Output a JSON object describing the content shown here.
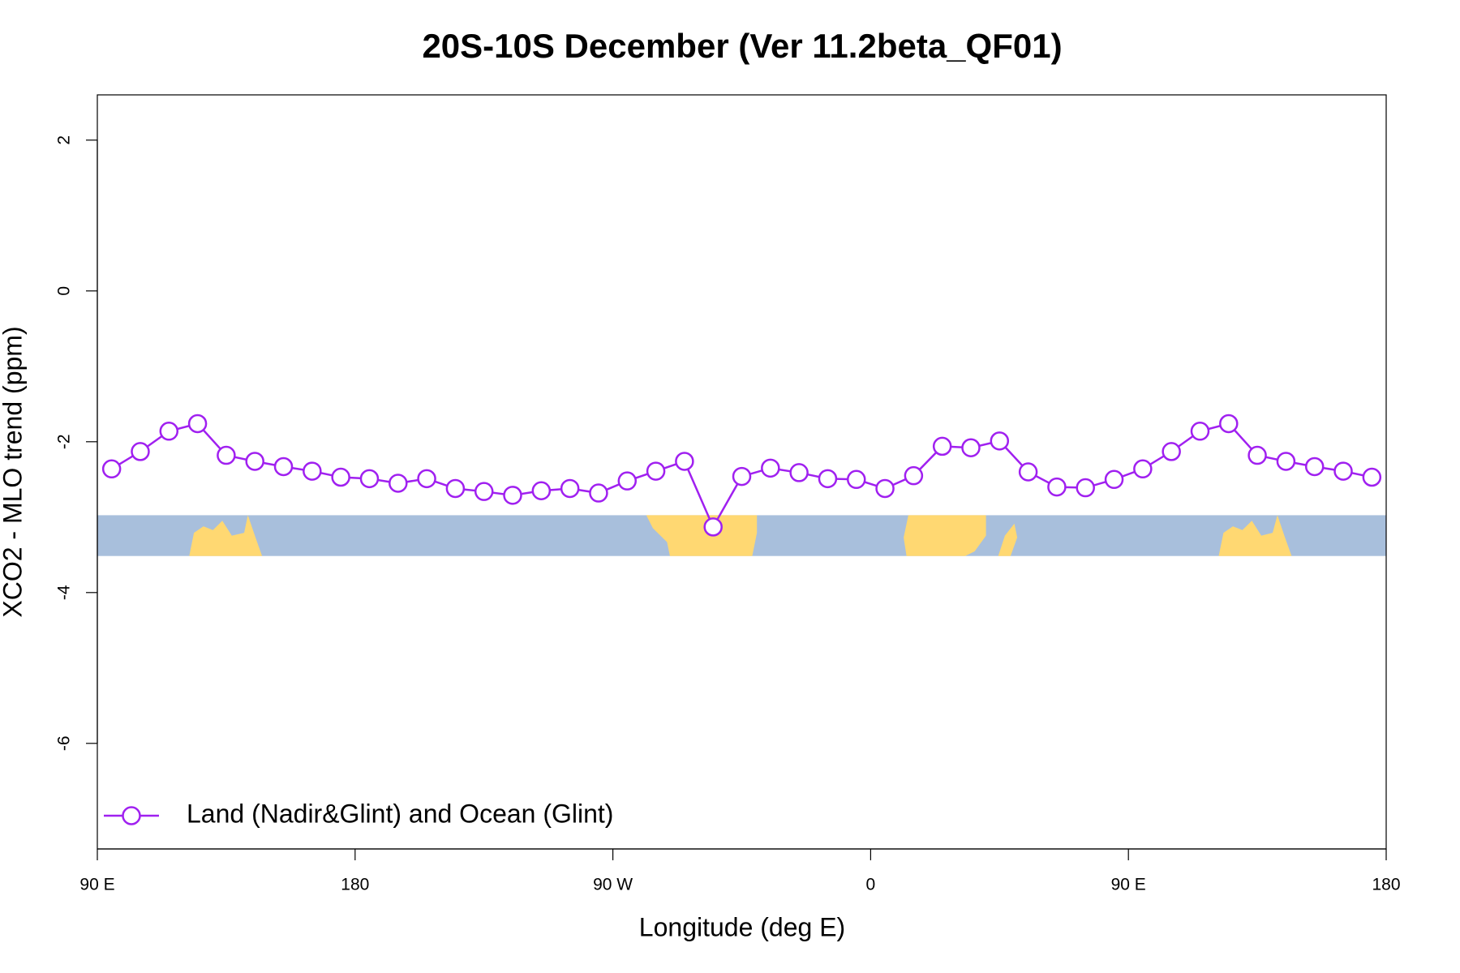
{
  "chart_data": {
    "type": "line",
    "title": "20S-10S December (Ver 11.2beta_QF01)",
    "xlabel": "Longitude (deg E)",
    "ylabel": "XCO2 - MLO trend (ppm)",
    "x": [
      95,
      105,
      115,
      125,
      135,
      145,
      155,
      165,
      175,
      185,
      195,
      205,
      215,
      225,
      235,
      245,
      255,
      265,
      275,
      285,
      295,
      305,
      315,
      325,
      335,
      345,
      355,
      365,
      375,
      385,
      395,
      405,
      415,
      425,
      435,
      445,
      455,
      465,
      475,
      485,
      495,
      505,
      515,
      525,
      535
    ],
    "series": [
      {
        "name": "Land (Nadir&Glint) and Ocean (Glint)",
        "color": "#a020f0",
        "values": [
          -2.36,
          -2.13,
          -1.86,
          -1.76,
          -2.18,
          -2.26,
          -2.33,
          -2.39,
          -2.47,
          -2.49,
          -2.55,
          -2.49,
          -2.62,
          -2.66,
          -2.71,
          -2.65,
          -2.62,
          -2.68,
          -2.52,
          -2.39,
          -2.26,
          -3.13,
          -2.46,
          -2.35,
          -2.41,
          -2.49,
          -2.5,
          -2.62,
          -2.45,
          -2.06,
          -2.08,
          -1.99,
          -2.4,
          -2.6,
          -2.61,
          -2.5,
          -2.36,
          -2.13,
          -1.86,
          -1.76,
          -2.18,
          -2.26,
          -2.33,
          -2.39,
          -2.47
        ]
      }
    ],
    "xlim": [
      90,
      540
    ],
    "xticks": [
      {
        "value": 90,
        "label": "90 E"
      },
      180,
      {
        "value": 270,
        "label": "90 W"
      },
      {
        "value": 360,
        "label": "0"
      },
      {
        "value": 450,
        "label": "90 E"
      },
      {
        "value": 540,
        "label": "180"
      }
    ],
    "ylim": [
      -7.4,
      2.6
    ],
    "yticks": [
      2,
      0,
      -2,
      -4,
      -6
    ],
    "grid": false,
    "legend": "bottomleft"
  }
}
